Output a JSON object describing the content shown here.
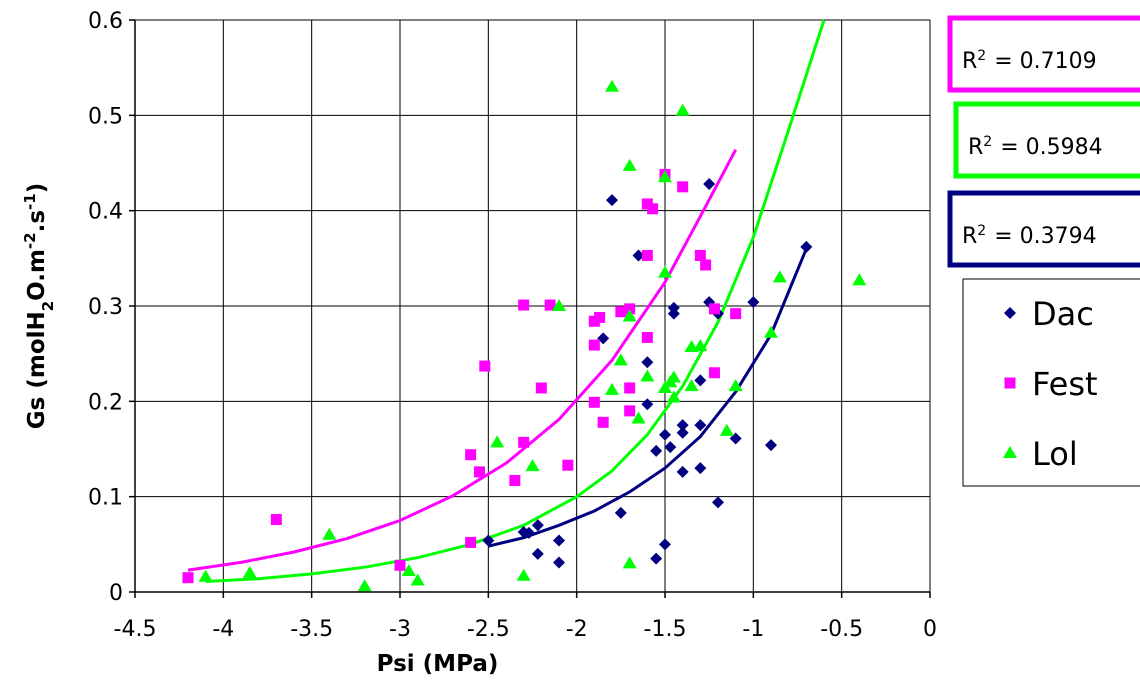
{
  "chart_data": {
    "type": "scatter",
    "xlabel": "Psi (MPa)",
    "ylabel": {
      "parts": [
        {
          "text": "Gs (molH",
          "shift": "none"
        },
        {
          "text": "2",
          "shift": "sub"
        },
        {
          "text": "O.m",
          "shift": "none"
        },
        {
          "text": "-2",
          "shift": "super"
        },
        {
          "text": ".s",
          "shift": "none"
        },
        {
          "text": "-1",
          "shift": "super"
        },
        {
          "text": ")",
          "shift": "none"
        }
      ]
    },
    "xlim": [
      -4.5,
      0
    ],
    "ylim": [
      0,
      0.6
    ],
    "x_ticks": [
      -4.5,
      -4,
      -3.5,
      -3,
      -2.5,
      -2,
      -1.5,
      -1,
      -0.5,
      0
    ],
    "y_ticks": [
      0,
      0.1,
      0.2,
      0.3,
      0.4,
      0.5,
      0.6
    ],
    "grid": "vertical and horizontal",
    "legend_position": "right",
    "series": [
      {
        "name": "Dac",
        "marker": "diamond",
        "color": "#000080",
        "points": [
          [
            -2.5,
            0.054
          ],
          [
            -2.3,
            0.063
          ],
          [
            -2.27,
            0.062
          ],
          [
            -2.22,
            0.07
          ],
          [
            -2.22,
            0.04
          ],
          [
            -2.1,
            0.054
          ],
          [
            -2.1,
            0.031
          ],
          [
            -1.85,
            0.266
          ],
          [
            -1.8,
            0.411
          ],
          [
            -1.75,
            0.083
          ],
          [
            -1.65,
            0.353
          ],
          [
            -1.6,
            0.241
          ],
          [
            -1.6,
            0.197
          ],
          [
            -1.55,
            0.148
          ],
          [
            -1.55,
            0.035
          ],
          [
            -1.5,
            0.165
          ],
          [
            -1.5,
            0.05
          ],
          [
            -1.47,
            0.152
          ],
          [
            -1.45,
            0.298
          ],
          [
            -1.45,
            0.292
          ],
          [
            -1.4,
            0.175
          ],
          [
            -1.4,
            0.167
          ],
          [
            -1.4,
            0.126
          ],
          [
            -1.3,
            0.175
          ],
          [
            -1.3,
            0.13
          ],
          [
            -1.3,
            0.222
          ],
          [
            -1.25,
            0.428
          ],
          [
            -1.25,
            0.304
          ],
          [
            -1.2,
            0.292
          ],
          [
            -1.2,
            0.094
          ],
          [
            -1.1,
            0.161
          ],
          [
            -1.0,
            0.304
          ],
          [
            -0.9,
            0.154
          ],
          [
            -0.7,
            0.362
          ]
        ],
        "fit": [
          [
            -2.5,
            0.048
          ],
          [
            -2.3,
            0.057
          ],
          [
            -2.1,
            0.07
          ],
          [
            -1.9,
            0.085
          ],
          [
            -1.7,
            0.105
          ],
          [
            -1.5,
            0.13
          ],
          [
            -1.3,
            0.163
          ],
          [
            -1.1,
            0.21
          ],
          [
            -0.9,
            0.27
          ],
          [
            -0.7,
            0.36
          ]
        ],
        "r2_text": "= 0.3794"
      },
      {
        "name": "Fest",
        "marker": "square",
        "color": "#FF00FF",
        "points": [
          [
            -4.2,
            0.015
          ],
          [
            -3.7,
            0.076
          ],
          [
            -3.0,
            0.028
          ],
          [
            -2.6,
            0.144
          ],
          [
            -2.6,
            0.052
          ],
          [
            -2.55,
            0.126
          ],
          [
            -2.52,
            0.237
          ],
          [
            -2.35,
            0.117
          ],
          [
            -2.3,
            0.301
          ],
          [
            -2.3,
            0.157
          ],
          [
            -2.2,
            0.214
          ],
          [
            -2.15,
            0.301
          ],
          [
            -2.05,
            0.133
          ],
          [
            -1.9,
            0.284
          ],
          [
            -1.9,
            0.259
          ],
          [
            -1.9,
            0.199
          ],
          [
            -1.87,
            0.288
          ],
          [
            -1.85,
            0.178
          ],
          [
            -1.75,
            0.294
          ],
          [
            -1.7,
            0.297
          ],
          [
            -1.7,
            0.214
          ],
          [
            -1.7,
            0.19
          ],
          [
            -1.6,
            0.407
          ],
          [
            -1.6,
            0.353
          ],
          [
            -1.6,
            0.267
          ],
          [
            -1.57,
            0.402
          ],
          [
            -1.5,
            0.438
          ],
          [
            -1.4,
            0.425
          ],
          [
            -1.3,
            0.353
          ],
          [
            -1.27,
            0.343
          ],
          [
            -1.22,
            0.23
          ],
          [
            -1.22,
            0.297
          ],
          [
            -1.1,
            0.292
          ]
        ],
        "fit": [
          [
            -4.2,
            0.023
          ],
          [
            -3.9,
            0.031
          ],
          [
            -3.6,
            0.042
          ],
          [
            -3.3,
            0.056
          ],
          [
            -3.0,
            0.075
          ],
          [
            -2.7,
            0.101
          ],
          [
            -2.4,
            0.135
          ],
          [
            -2.1,
            0.181
          ],
          [
            -1.8,
            0.243
          ],
          [
            -1.5,
            0.325
          ],
          [
            -1.3,
            0.394
          ],
          [
            -1.1,
            0.464
          ]
        ],
        "r2_text": "= 0.7109"
      },
      {
        "name": "Lol",
        "marker": "triangle",
        "color": "#00FF00",
        "points": [
          [
            -4.1,
            0.016
          ],
          [
            -3.85,
            0.02
          ],
          [
            -3.4,
            0.06
          ],
          [
            -3.2,
            0.006
          ],
          [
            -2.95,
            0.022
          ],
          [
            -2.9,
            0.012
          ],
          [
            -2.45,
            0.157
          ],
          [
            -2.3,
            0.017
          ],
          [
            -2.25,
            0.132
          ],
          [
            -2.1,
            0.3
          ],
          [
            -1.8,
            0.53
          ],
          [
            -1.8,
            0.212
          ],
          [
            -1.75,
            0.243
          ],
          [
            -1.7,
            0.447
          ],
          [
            -1.7,
            0.289
          ],
          [
            -1.7,
            0.03
          ],
          [
            -1.65,
            0.182
          ],
          [
            -1.6,
            0.226
          ],
          [
            -1.5,
            0.435
          ],
          [
            -1.5,
            0.335
          ],
          [
            -1.5,
            0.214
          ],
          [
            -1.47,
            0.22
          ],
          [
            -1.45,
            0.225
          ],
          [
            -1.45,
            0.204
          ],
          [
            -1.4,
            0.505
          ],
          [
            -1.35,
            0.257
          ],
          [
            -1.35,
            0.216
          ],
          [
            -1.3,
            0.258
          ],
          [
            -1.15,
            0.169
          ],
          [
            -1.1,
            0.216
          ],
          [
            -0.9,
            0.272
          ],
          [
            -0.85,
            0.33
          ],
          [
            -0.4,
            0.327
          ]
        ],
        "fit": [
          [
            -4.1,
            0.011
          ],
          [
            -3.8,
            0.014
          ],
          [
            -3.5,
            0.019
          ],
          [
            -3.2,
            0.026
          ],
          [
            -2.9,
            0.036
          ],
          [
            -2.6,
            0.05
          ],
          [
            -2.3,
            0.07
          ],
          [
            -2.0,
            0.1
          ],
          [
            -1.8,
            0.127
          ],
          [
            -1.6,
            0.165
          ],
          [
            -1.4,
            0.216
          ],
          [
            -1.2,
            0.283
          ],
          [
            -1.0,
            0.372
          ],
          [
            -0.8,
            0.485
          ],
          [
            -0.6,
            0.6
          ]
        ],
        "r2_text": "= 0.5984"
      }
    ],
    "r2_boxes": [
      {
        "series": "Fest",
        "border": "#FF00FF",
        "base": "R",
        "sup": "2",
        "value": "= 0.7109"
      },
      {
        "series": "Lol",
        "border": "#00FF00",
        "base": "R",
        "sup": "2",
        "value": "= 0.5984"
      },
      {
        "series": "Dac",
        "border": "#000080",
        "base": "R",
        "sup": "2",
        "value": "= 0.3794"
      }
    ]
  }
}
